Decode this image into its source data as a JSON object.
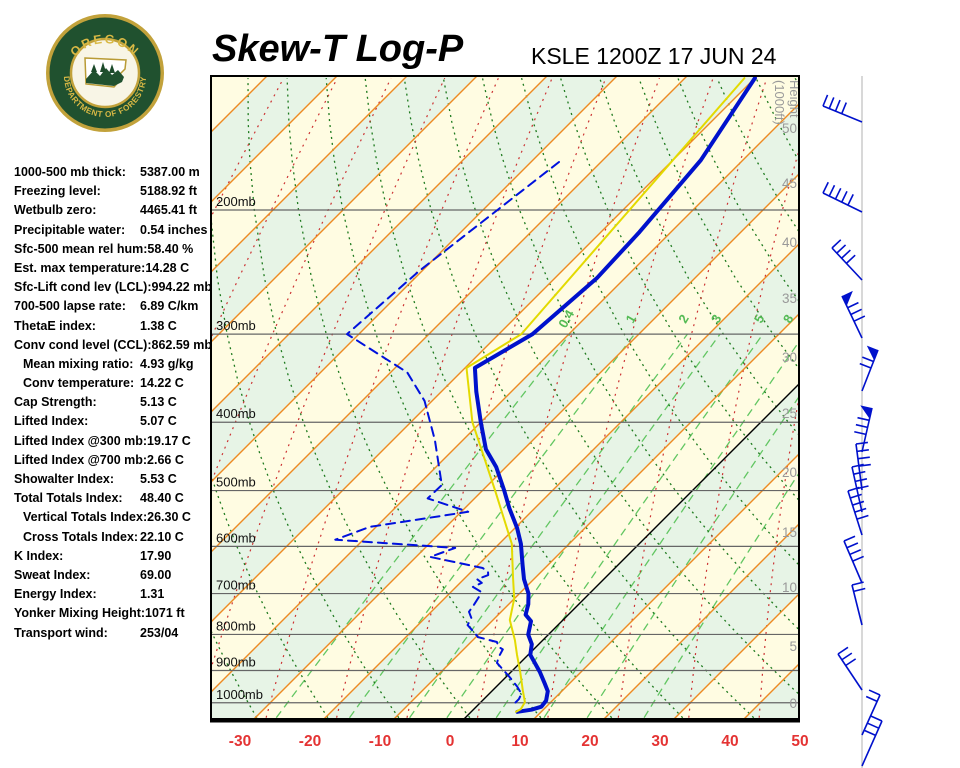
{
  "header": {
    "title": "Skew-T Log-P",
    "station_line": "KSLE 1200Z 17 JUN 24",
    "logo": {
      "name": "oregon-department-of-forestry-seal",
      "ring_top": "OREGON",
      "ring_bottom": "DEPARTMENT OF FORESTRY"
    }
  },
  "indices": {
    "rows": [
      {
        "label": "1000-500 mb thick:",
        "value": "5387.00 m",
        "indent": false
      },
      {
        "label": "Freezing level:",
        "value": "5188.92 ft",
        "indent": false
      },
      {
        "label": "Wetbulb zero:",
        "value": "4465.41 ft",
        "indent": false
      },
      {
        "label": "Precipitable water:",
        "value": "0.54 inches",
        "indent": false
      },
      {
        "label": "Sfc-500 mean rel hum:",
        "value": "58.40 %",
        "indent": false
      },
      {
        "label": "Est. max temperature:",
        "value": "14.28 C",
        "indent": false
      },
      {
        "label": "Sfc-Lift cond lev (LCL):",
        "value": "994.22 mb",
        "indent": false
      },
      {
        "label": "700-500 lapse rate:",
        "value": "6.89 C/km",
        "indent": false
      },
      {
        "label": "ThetaE index:",
        "value": "1.38 C",
        "indent": false
      },
      {
        "label": "Conv cond level (CCL):",
        "value": "862.59 mb",
        "indent": false
      },
      {
        "label": "Mean mixing ratio:",
        "value": "4.93 g/kg",
        "indent": true
      },
      {
        "label": "Conv temperature:",
        "value": "14.22 C",
        "indent": true
      },
      {
        "label": "Cap Strength:",
        "value": "5.13 C",
        "indent": false
      },
      {
        "label": "Lifted Index:",
        "value": "5.07 C",
        "indent": false
      },
      {
        "label": "Lifted Index @300 mb:",
        "value": "19.17 C",
        "indent": false
      },
      {
        "label": "Lifted Index @700 mb:",
        "value": "2.66 C",
        "indent": false
      },
      {
        "label": "Showalter Index:",
        "value": "5.53 C",
        "indent": false
      },
      {
        "label": "Total Totals Index:",
        "value": "48.40 C",
        "indent": false
      },
      {
        "label": "Vertical Totals Index:",
        "value": "26.30 C",
        "indent": true
      },
      {
        "label": "Cross Totals Index:",
        "value": "22.10 C",
        "indent": true
      },
      {
        "label": "K Index:",
        "value": "17.90",
        "indent": false
      },
      {
        "label": "Sweat Index:",
        "value": "69.00",
        "indent": false
      },
      {
        "label": "Energy Index:",
        "value": "1.31",
        "indent": false
      },
      {
        "label": "Yonker Mixing Height:",
        "value": "1071 ft",
        "indent": false
      },
      {
        "label": "Transport wind:",
        "value": "253/04",
        "indent": false
      }
    ]
  },
  "chart_data": {
    "type": "line",
    "subtype": "skew-t_log-p_sounding",
    "title": "Skew-T Log-P",
    "station": "KSLE 1200Z 17 JUN 24",
    "temp_axis": {
      "unit": "C",
      "ticks": [
        -30,
        -20,
        -10,
        0,
        10,
        20,
        30,
        40,
        50
      ],
      "tick_color": "#e43333"
    },
    "pressure_axis": {
      "unit": "mb",
      "levels": [
        200,
        300,
        400,
        500,
        600,
        700,
        800,
        900,
        1000
      ],
      "label_suffix": "mb"
    },
    "height_axis": {
      "title_line1": "Height",
      "title_line2": "(1000ft)",
      "labels": [
        {
          "value": 50,
          "y": 133
        },
        {
          "value": 45,
          "y": 188
        },
        {
          "value": 40,
          "y": 247
        },
        {
          "value": 35,
          "y": 303
        },
        {
          "value": 30,
          "y": 362
        },
        {
          "value": 25,
          "y": 418
        },
        {
          "value": 20,
          "y": 477
        },
        {
          "value": 15,
          "y": 537
        },
        {
          "value": 10,
          "y": 592
        },
        {
          "value": 5,
          "y": 651
        },
        {
          "value": 0,
          "y": 708
        }
      ]
    },
    "mixing_ratio_lines": {
      "values_gkg": [
        0.4,
        1,
        2,
        3,
        5,
        8,
        12,
        20
      ],
      "labeled": [
        "0.4",
        "1",
        "2",
        "3",
        "5",
        "8"
      ],
      "label_color": "#55bb55"
    },
    "series": [
      {
        "name": "temperature",
        "color": "#0011cc",
        "style": "solid",
        "width": 4,
        "points_p_T": [
          [
            130,
            -50
          ],
          [
            170,
            -46
          ],
          [
            215,
            -44.5
          ],
          [
            250,
            -44
          ],
          [
            300,
            -45.2
          ],
          [
            335,
            -48.6
          ],
          [
            362,
            -45
          ],
          [
            400,
            -40
          ],
          [
            437,
            -35.4
          ],
          [
            463,
            -31.4
          ],
          [
            500,
            -26.9
          ],
          [
            530,
            -23.6
          ],
          [
            565,
            -19.7
          ],
          [
            595,
            -16.9
          ],
          [
            638,
            -13.6
          ],
          [
            668,
            -11.4
          ],
          [
            700,
            -8.7
          ],
          [
            725,
            -7.2
          ],
          [
            750,
            -6.1
          ],
          [
            766,
            -4.4
          ],
          [
            800,
            -2.9
          ],
          [
            826,
            -1.0
          ],
          [
            855,
            0.3
          ],
          [
            904,
            4.1
          ],
          [
            938,
            6.4
          ],
          [
            963,
            8.0
          ],
          [
            993,
            9.1
          ],
          [
            1013,
            9.3
          ],
          [
            1023,
            8.3
          ],
          [
            1030,
            6.6
          ]
        ]
      },
      {
        "name": "dewpoint",
        "color": "#0011dd",
        "style": "dashed",
        "width": 2,
        "points_p_T": [
          [
            171,
            -66
          ],
          [
            244,
            -70.4
          ],
          [
            300,
            -71.7
          ],
          [
            340,
            -57.6
          ],
          [
            373,
            -51.1
          ],
          [
            424,
            -44
          ],
          [
            491,
            -36.6
          ],
          [
            513,
            -36.7
          ],
          [
            536,
            -29
          ],
          [
            563,
            -40.9
          ],
          [
            587,
            -44
          ],
          [
            603,
            -25.7
          ],
          [
            621,
            -28
          ],
          [
            644,
            -18.9
          ],
          [
            652,
            -17.6
          ],
          [
            659,
            -17.1
          ],
          [
            668,
            -18.1
          ],
          [
            676,
            -16.9
          ],
          [
            685,
            -17.6
          ],
          [
            695,
            -15.9
          ],
          [
            708,
            -15.3
          ],
          [
            726,
            -14.9
          ],
          [
            743,
            -14.6
          ],
          [
            758,
            -13.4
          ],
          [
            776,
            -12.9
          ],
          [
            794,
            -11
          ],
          [
            807,
            -9.7
          ],
          [
            820,
            -6.3
          ],
          [
            833,
            -5.4
          ],
          [
            840,
            -4.4
          ],
          [
            861,
            -3.9
          ],
          [
            878,
            -3.3
          ],
          [
            896,
            -1.6
          ],
          [
            917,
            0.3
          ],
          [
            949,
            3
          ],
          [
            971,
            4.6
          ],
          [
            988,
            5
          ],
          [
            999,
            5
          ]
        ]
      },
      {
        "name": "wetbulb",
        "color": "#e3da00",
        "style": "solid",
        "width": 2,
        "points_p_T": [
          [
            130,
            -51.5
          ],
          [
            300,
            -46.8
          ],
          [
            335,
            -49.8
          ],
          [
            400,
            -41.2
          ],
          [
            500,
            -28.2
          ],
          [
            595,
            -18.2
          ],
          [
            663,
            -13.3
          ],
          [
            712,
            -10
          ],
          [
            763,
            -7.6
          ],
          [
            815,
            -4
          ],
          [
            855,
            -1.6
          ],
          [
            904,
            1.3
          ],
          [
            960,
            4.3
          ],
          [
            998,
            6.3
          ],
          [
            1021,
            6.7
          ],
          [
            1030,
            6.4
          ]
        ]
      }
    ],
    "wind_barbs": {
      "color": "#0011cc",
      "station_x": 862,
      "barbs": [
        {
          "y": 122,
          "dx": -39,
          "dy": -16,
          "ticks": 4,
          "pennant": false
        },
        {
          "y": 212,
          "dx": -39,
          "dy": -19,
          "ticks": 5,
          "pennant": false
        },
        {
          "y": 280,
          "dx": -30,
          "dy": -32,
          "ticks": 4,
          "pennant": false
        },
        {
          "y": 338,
          "dx": -20,
          "dy": -42,
          "ticks": 3,
          "pennant": true
        },
        {
          "y": 391,
          "dx": 16,
          "dy": -41,
          "ticks": 2,
          "pennant": true
        },
        {
          "y": 452,
          "dx": 10,
          "dy": -44,
          "ticks": 3,
          "pennant": true
        },
        {
          "y": 490,
          "dx": -6,
          "dy": -46,
          "ticks": 4,
          "pennant": false
        },
        {
          "y": 512,
          "dx": -10,
          "dy": -45,
          "ticks": 4,
          "pennant": false
        },
        {
          "y": 535,
          "dx": -14,
          "dy": -44,
          "ticks": 5,
          "pennant": false
        },
        {
          "y": 583,
          "dx": -18,
          "dy": -42,
          "ticks": 4,
          "pennant": false
        },
        {
          "y": 625,
          "dx": -10,
          "dy": -40,
          "ticks": 2,
          "pennant": false
        },
        {
          "y": 690,
          "dx": -24,
          "dy": -36,
          "ticks": 3,
          "pennant": false
        },
        {
          "y": 735,
          "dx": 18,
          "dy": -40,
          "ticks": 2,
          "pennant": false
        },
        {
          "y": 766,
          "dx": 20,
          "dy": -45,
          "ticks": 3,
          "pennant": false
        }
      ]
    },
    "grid_colors": {
      "band_yellow": "#fffce2",
      "band_green": "#e7f4e6",
      "isotherm": "#ee8a22",
      "freezing_isotherm": "#000000",
      "dry_adiabat": "#1e7a1e",
      "moist_adiabat": "#cc3333",
      "mixing_ratio": "#62c662",
      "pressure_line": "#666666",
      "height_label": "#999999",
      "barb_guide_line": "#cccccc"
    },
    "layout_hints": {
      "pressure_top_mb": 129,
      "pressure_bottom_mb": 1050,
      "skew": "45deg isotherms",
      "grid": "on",
      "legend": "none"
    }
  }
}
